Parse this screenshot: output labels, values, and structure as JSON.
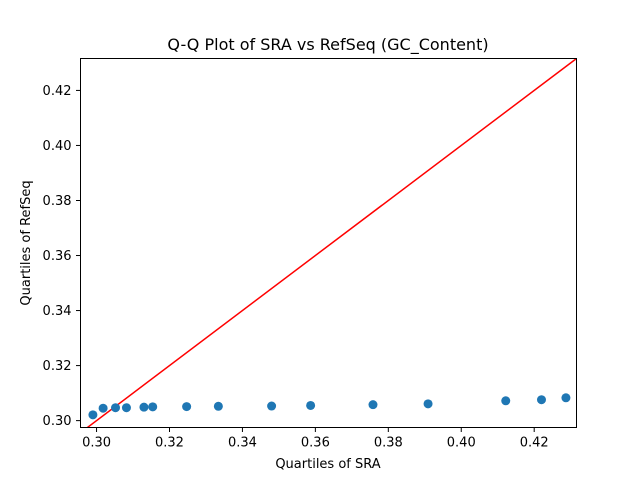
{
  "chart_data": {
    "type": "scatter",
    "title": "Q-Q Plot of SRA vs RefSeq (GC_Content)",
    "xlabel": "Quartiles of SRA",
    "ylabel": "Quartiles of RefSeq",
    "xlim": [
      0.2956,
      0.4316
    ],
    "ylim": [
      0.2975,
      0.4316
    ],
    "xticks": [
      0.3,
      0.32,
      0.34,
      0.36,
      0.38,
      0.4,
      0.42
    ],
    "yticks": [
      0.3,
      0.32,
      0.34,
      0.36,
      0.38,
      0.4,
      0.42
    ],
    "tick_labels_x": [
      "0.30",
      "0.32",
      "0.34",
      "0.36",
      "0.38",
      "0.40",
      "0.42"
    ],
    "tick_labels_y": [
      "0.30",
      "0.32",
      "0.34",
      "0.36",
      "0.38",
      "0.40",
      "0.42"
    ],
    "grid": false,
    "legend": "none",
    "colors": {
      "points": "#1f77b4",
      "reference_line": "#ff0000"
    },
    "reference_line": {
      "type": "identity",
      "points": [
        [
          0.2956,
          0.2956
        ],
        [
          0.4316,
          0.4316
        ]
      ]
    },
    "series": [
      {
        "points": [
          [
            0.299,
            0.3021
          ],
          [
            0.3018,
            0.3045
          ],
          [
            0.3052,
            0.3047
          ],
          [
            0.3082,
            0.3047
          ],
          [
            0.313,
            0.3049
          ],
          [
            0.3154,
            0.305
          ],
          [
            0.3247,
            0.3051
          ],
          [
            0.3334,
            0.3052
          ],
          [
            0.348,
            0.3053
          ],
          [
            0.3587,
            0.3055
          ],
          [
            0.3758,
            0.3058
          ],
          [
            0.3909,
            0.3061
          ],
          [
            0.4122,
            0.3072
          ],
          [
            0.422,
            0.3076
          ],
          [
            0.4287,
            0.3083
          ]
        ]
      }
    ]
  }
}
